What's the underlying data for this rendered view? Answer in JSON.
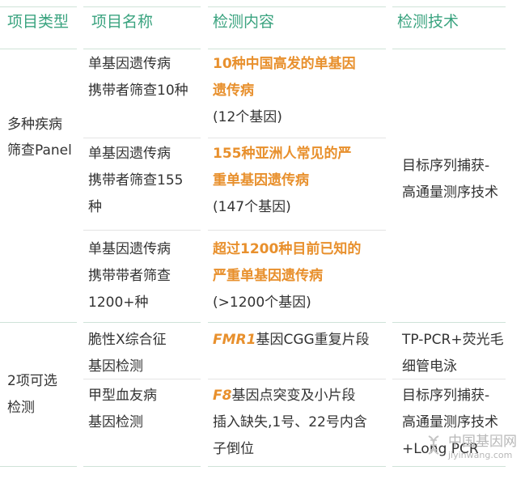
{
  "colors": {
    "header": "#3aa37f",
    "highlight": "#e8902d",
    "text": "#333333",
    "rule": "#cfe3d8"
  },
  "headers": [
    "项目类型",
    "项目名称",
    "检测内容",
    "检测技术"
  ],
  "groups": [
    {
      "type_lines": [
        "多种疾病",
        "筛查Panel"
      ]
    },
    {
      "type_lines": [
        "2项可选",
        "检测"
      ]
    }
  ],
  "rows": [
    {
      "name_lines": [
        "单基因遗传病",
        "携带者筛查10种"
      ],
      "content_highlight": [
        "10种中国高发的单基因",
        "遗传病"
      ],
      "content_note": "(12个基因)"
    },
    {
      "name_lines": [
        "单基因遗传病",
        "携带者筛查155",
        "种"
      ],
      "content_highlight": [
        "155种亚洲人常见的严",
        "重单基因遗传病"
      ],
      "content_note": "(147个基因)"
    },
    {
      "name_lines": [
        "单基因遗传病",
        "携带带者筛查",
        "1200+种"
      ],
      "content_highlight": [
        "超过1200种目前已知的",
        "严重单基因遗传病"
      ],
      "content_note": "(>1200个基因)"
    },
    {
      "name_lines": [
        "脆性X综合征",
        "基因检测"
      ],
      "gene": "FMR1",
      "content_lines": [
        "基因CGG重复片段"
      ]
    },
    {
      "name_lines": [
        "甲型血友病",
        "基因检测"
      ],
      "gene": "F8",
      "content_lines": [
        "基因点突变及小片段",
        "插入缺失,1号、22号内含",
        "子倒位"
      ]
    }
  ],
  "tech": {
    "panel": [
      "目标序列捕获-",
      "高通量测序技术"
    ],
    "fmr1": [
      "TP-PCR+荧光毛",
      "细管电泳"
    ],
    "f8": [
      "目标序列捕获-",
      "高通量测序技术",
      "+Long PCR"
    ]
  },
  "watermark": {
    "name": "中国基因网",
    "url": "jiyinwang.com",
    "logo": "dna-logo"
  }
}
